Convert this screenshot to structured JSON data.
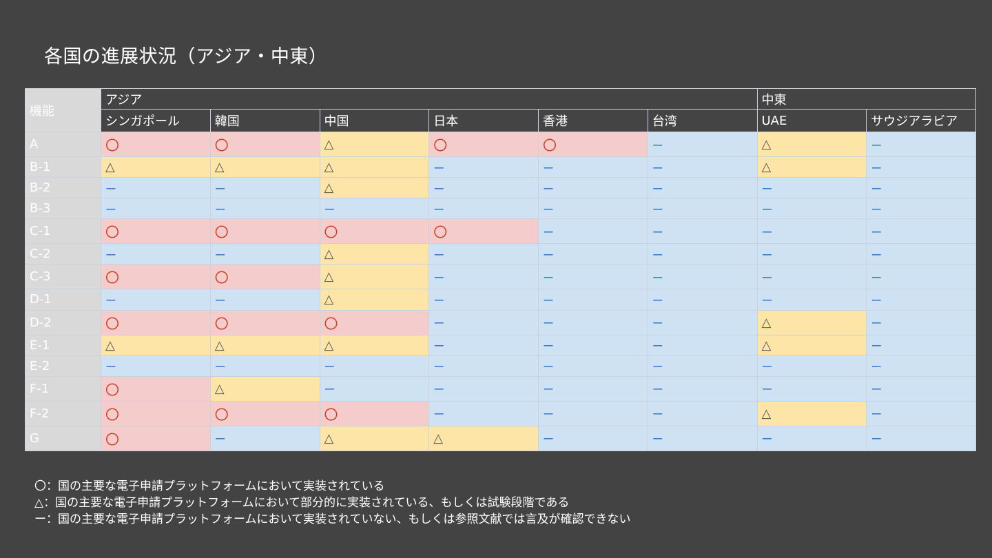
{
  "title": "各国の進展状況（アジア・中東）",
  "table": {
    "corner_label": "機能",
    "regions": [
      {
        "label": "アジア",
        "span": 6
      },
      {
        "label": "中東",
        "span": 2
      }
    ],
    "countries": [
      "シンガポール",
      "韓国",
      "中国",
      "日本",
      "香港",
      "台湾",
      "UAE",
      "サウジアラビア"
    ],
    "symbols": {
      "circle": "〇",
      "triangle": "△",
      "dash": "ー"
    },
    "colors": {
      "circle": "#f4cccc",
      "triangle": "#fce5a7",
      "dash": "#cfe2f3"
    },
    "rows": [
      {
        "label": "A",
        "cells": [
          "circle",
          "circle",
          "triangle",
          "circle",
          "circle",
          "dash",
          "triangle",
          "dash"
        ]
      },
      {
        "label": "B-1",
        "cells": [
          "triangle",
          "triangle",
          "triangle",
          "dash",
          "dash",
          "dash",
          "triangle",
          "dash"
        ]
      },
      {
        "label": "B-2",
        "cells": [
          "dash",
          "dash",
          "triangle",
          "dash",
          "dash",
          "dash",
          "dash",
          "dash"
        ]
      },
      {
        "label": "B-3",
        "cells": [
          "dash",
          "dash",
          "dash",
          "dash",
          "dash",
          "dash",
          "dash",
          "dash"
        ]
      },
      {
        "label": "C-1",
        "cells": [
          "circle",
          "circle",
          "circle",
          "circle",
          "dash",
          "dash",
          "dash",
          "dash"
        ]
      },
      {
        "label": "C-2",
        "cells": [
          "dash",
          "dash",
          "triangle",
          "dash",
          "dash",
          "dash",
          "dash",
          "dash"
        ]
      },
      {
        "label": "C-3",
        "cells": [
          "circle",
          "circle",
          "triangle",
          "dash",
          "dash",
          "dash",
          "dash",
          "dash"
        ]
      },
      {
        "label": "D-1",
        "cells": [
          "dash",
          "dash",
          "triangle",
          "dash",
          "dash",
          "dash",
          "dash",
          "dash"
        ]
      },
      {
        "label": "D-2",
        "cells": [
          "circle",
          "circle",
          "circle",
          "dash",
          "dash",
          "dash",
          "triangle",
          "dash"
        ]
      },
      {
        "label": "E-1",
        "cells": [
          "triangle",
          "triangle",
          "triangle",
          "dash",
          "dash",
          "dash",
          "triangle",
          "dash"
        ]
      },
      {
        "label": "E-2",
        "cells": [
          "dash",
          "dash",
          "dash",
          "dash",
          "dash",
          "dash",
          "dash",
          "dash"
        ]
      },
      {
        "label": "F-1",
        "cells": [
          "circle",
          "triangle",
          "dash",
          "dash",
          "dash",
          "dash",
          "dash",
          "dash"
        ]
      },
      {
        "label": "F-2",
        "cells": [
          "circle",
          "circle",
          "circle",
          "dash",
          "dash",
          "dash",
          "triangle",
          "dash"
        ]
      },
      {
        "label": "G",
        "cells": [
          "circle",
          "dash",
          "triangle",
          "triangle",
          "dash",
          "dash",
          "dash",
          "dash"
        ]
      }
    ]
  },
  "legend": [
    "〇：国の主要な電子申請プラットフォームにおいて実装されている",
    "△：国の主要な電子申請プラットフォームにおいて部分的に実装されている、もしくは試験段階である",
    "ー：国の主要な電子申請プラットフォームにおいて実装されていない、もしくは参照文献では言及が確認できない"
  ]
}
